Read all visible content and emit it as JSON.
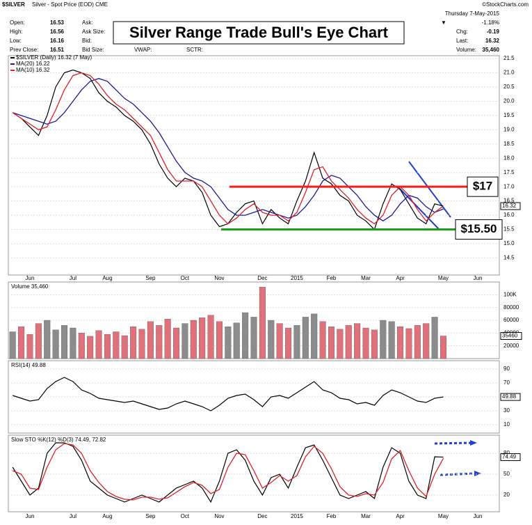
{
  "header": {
    "symbol": "$SILVER",
    "description": "Silver - Spot Price (EOD) CME",
    "source": "©StockCharts.com",
    "date": "Thursday 7-May-2015",
    "fields": [
      {
        "label": "Open:",
        "value": 16.53
      },
      {
        "label": "High:",
        "value": 16.56
      },
      {
        "label": "Low:",
        "value": 16.16
      },
      {
        "label": "Prev Close:",
        "value": 16.51
      }
    ],
    "quote_fields": [
      "Ask:",
      "Ask Size:",
      "Bid:",
      "Bid Size:"
    ],
    "extra_fields": [
      "VWAP:",
      "SCTR:"
    ],
    "change_pct": "-1.18%",
    "right_fields": [
      {
        "label": "Chg:",
        "value": -0.19
      },
      {
        "label": "Last:",
        "value": 16.32
      },
      {
        "label": "Volume:",
        "value": "35,460"
      }
    ],
    "title": "Silver Range Trade Bull's Eye Chart"
  },
  "chart_data": [
    {
      "type": "line",
      "categories": [
        null,
        null,
        "Jun",
        null,
        null,
        null,
        null,
        "Jul",
        null,
        null,
        null,
        "Aug",
        null,
        null,
        null,
        null,
        "Sep",
        null,
        null,
        null,
        "Oct",
        null,
        null,
        null,
        "Nov",
        null,
        null,
        null,
        null,
        "Dec",
        null,
        null,
        null,
        "2015",
        null,
        null,
        null,
        "Feb",
        null,
        null,
        null,
        "Mar",
        null,
        null,
        null,
        "Apr",
        null,
        null,
        null,
        null,
        "May",
        null,
        null,
        null,
        "Jun",
        null,
        null
      ],
      "series": [
        {
          "name": "$SILVER (Daily) 16.32 (7 May)",
          "color": "#000000",
          "values": [
            19.6,
            19.4,
            19.1,
            18.8,
            19.5,
            20.5,
            21.0,
            21.1,
            21.0,
            20.8,
            20.3,
            20.0,
            19.8,
            19.5,
            19.3,
            19.0,
            18.5,
            17.8,
            17.3,
            17.0,
            17.3,
            17.2,
            16.8,
            16.0,
            15.6,
            15.7,
            16.1,
            16.4,
            16.5,
            15.7,
            16.2,
            15.9,
            15.7,
            16.5,
            17.2,
            18.2,
            17.3,
            17.1,
            16.7,
            16.5,
            16.0,
            15.8,
            15.5,
            16.4,
            17.1,
            16.9,
            16.4,
            15.9,
            15.7,
            16.4,
            16.32,
            null,
            null,
            null,
            null,
            null,
            null
          ]
        },
        {
          "name": "MA(20) 16.22",
          "color": "#1a1a9c",
          "values": [
            19.6,
            19.5,
            19.4,
            19.3,
            19.2,
            19.3,
            19.6,
            20.0,
            20.4,
            20.7,
            20.8,
            20.7,
            20.4,
            20.1,
            19.9,
            19.6,
            19.3,
            18.9,
            18.4,
            17.9,
            17.5,
            17.3,
            17.2,
            17.0,
            16.6,
            16.2,
            16.0,
            16.0,
            16.1,
            16.2,
            16.1,
            16.0,
            15.9,
            16.0,
            16.3,
            16.7,
            17.2,
            17.4,
            17.3,
            17.0,
            16.7,
            16.3,
            16.0,
            15.8,
            16.0,
            16.4,
            16.7,
            16.6,
            16.3,
            16.1,
            16.22,
            null,
            null,
            null,
            null,
            null,
            null
          ]
        },
        {
          "name": "MA(10) 16.32",
          "color": "#e0202a",
          "values": [
            19.6,
            19.4,
            19.2,
            19.0,
            19.1,
            19.7,
            20.4,
            20.9,
            21.0,
            20.9,
            20.6,
            20.2,
            19.9,
            19.7,
            19.4,
            19.1,
            18.8,
            18.2,
            17.6,
            17.2,
            17.2,
            17.2,
            17.0,
            16.5,
            16.0,
            15.7,
            15.9,
            16.2,
            16.4,
            16.1,
            16.0,
            16.0,
            15.8,
            16.1,
            16.8,
            17.6,
            17.7,
            17.2,
            16.9,
            16.6,
            16.2,
            15.9,
            15.7,
            16.0,
            16.7,
            17.0,
            16.7,
            16.2,
            15.8,
            16.1,
            16.32,
            null,
            null,
            null,
            null,
            null,
            null
          ]
        }
      ],
      "levels": [
        {
          "value": 17,
          "label": "$17",
          "color": "#ff1a1a"
        },
        {
          "value": 15.5,
          "label": "$15.50",
          "color": "#1aa01a"
        }
      ],
      "ylim": [
        13.9,
        21.6
      ],
      "yticks": [
        14.5,
        {
          "value": 15,
          "label": "15.0"
        },
        15.5,
        {
          "value": 16,
          "label": "16.0"
        },
        16.5,
        {
          "value": 17,
          "label": "17.0"
        },
        17.5,
        {
          "value": 18,
          "label": "18.0"
        },
        18.5,
        {
          "value": 19,
          "label": "19.0"
        },
        19.5,
        {
          "value": 20,
          "label": "20.0"
        },
        20.5,
        {
          "value": 21,
          "label": "21.0"
        },
        21.5
      ],
      "grid": true
    },
    {
      "type": "bar",
      "title": "Volume 35,460",
      "up_color": "#8c8c8c",
      "down_color": "#e0707a",
      "values": [
        42000,
        50000,
        38000,
        55000,
        60000,
        45000,
        52000,
        48000,
        40000,
        35000,
        44000,
        38000,
        42000,
        36000,
        50000,
        46000,
        58000,
        52000,
        62000,
        48000,
        55000,
        60000,
        64000,
        68000,
        58000,
        50000,
        56000,
        72000,
        65000,
        112000,
        60000,
        55000,
        48000,
        52000,
        65000,
        70000,
        58000,
        50000,
        46000,
        52000,
        55000,
        48000,
        45000,
        60000,
        58000,
        50000,
        47000,
        52000,
        55000,
        65000,
        35460
      ],
      "ylim": [
        0,
        120000
      ],
      "yticks": [
        20000,
        40000,
        60000,
        80000,
        {
          "value": 100000,
          "label": "100K"
        }
      ],
      "grid": true
    },
    {
      "type": "line",
      "title": "RSI(14) 49.88",
      "series": [
        {
          "color": "#000000",
          "values": [
            52,
            48,
            44,
            46,
            62,
            72,
            78,
            72,
            60,
            55,
            48,
            46,
            44,
            42,
            44,
            40,
            36,
            32,
            34,
            40,
            44,
            40,
            36,
            30,
            38,
            48,
            52,
            54,
            46,
            36,
            50,
            52,
            48,
            56,
            64,
            72,
            60,
            56,
            48,
            46,
            40,
            42,
            38,
            52,
            60,
            56,
            50,
            44,
            42,
            48,
            49.88
          ]
        }
      ],
      "ylim": [
        -2,
        102
      ],
      "yticks": [
        10,
        30,
        50,
        70,
        90
      ],
      "grid": true
    },
    {
      "type": "line",
      "title": "Slow STO %K(12) %D(3) 74.49, 72.82",
      "series": [
        {
          "color": "#000000",
          "values": [
            60,
            40,
            20,
            30,
            80,
            95,
            95,
            90,
            70,
            40,
            30,
            20,
            15,
            10,
            15,
            20,
            15,
            10,
            20,
            30,
            35,
            40,
            30,
            10,
            40,
            80,
            85,
            70,
            40,
            20,
            45,
            50,
            30,
            60,
            88,
            92,
            70,
            45,
            20,
            15,
            20,
            25,
            15,
            60,
            88,
            80,
            40,
            20,
            15,
            75,
            74.49
          ]
        },
        {
          "color": "#e0202a",
          "values": [
            55,
            50,
            30,
            28,
            60,
            85,
            94,
            92,
            80,
            55,
            38,
            25,
            18,
            14,
            13,
            17,
            17,
            14,
            16,
            24,
            32,
            38,
            34,
            22,
            28,
            60,
            80,
            78,
            55,
            30,
            38,
            48,
            40,
            48,
            75,
            90,
            80,
            58,
            32,
            20,
            18,
            22,
            20,
            38,
            72,
            84,
            55,
            30,
            18,
            50,
            72.82
          ]
        }
      ],
      "ylim": [
        -4,
        106
      ],
      "yticks": [
        20,
        50,
        80
      ],
      "grid": true
    }
  ]
}
